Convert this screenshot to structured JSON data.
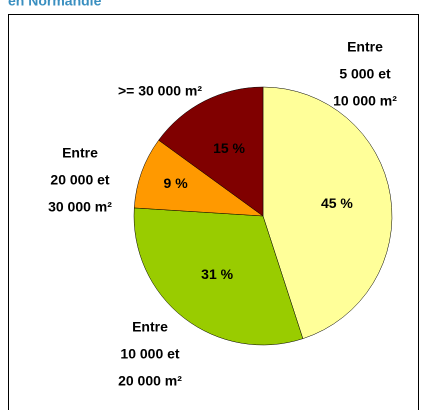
{
  "chart_data": {
    "type": "pie",
    "title": "en Normandie",
    "categories": [
      [
        "Entre",
        "5 000 et",
        "10 000 m²"
      ],
      [
        "Entre",
        "10 000 et",
        "20 000 m²"
      ],
      [
        "Entre",
        "20 000 et",
        "30 000 m²"
      ],
      [
        ">= 30 000 m²"
      ]
    ],
    "values": [
      45,
      31,
      9,
      15
    ],
    "value_labels": [
      "45 %",
      "31 %",
      "9 %",
      "15 %"
    ],
    "colors": [
      "#FFFF99",
      "#99CC00",
      "#FF9900",
      "#800000"
    ]
  }
}
